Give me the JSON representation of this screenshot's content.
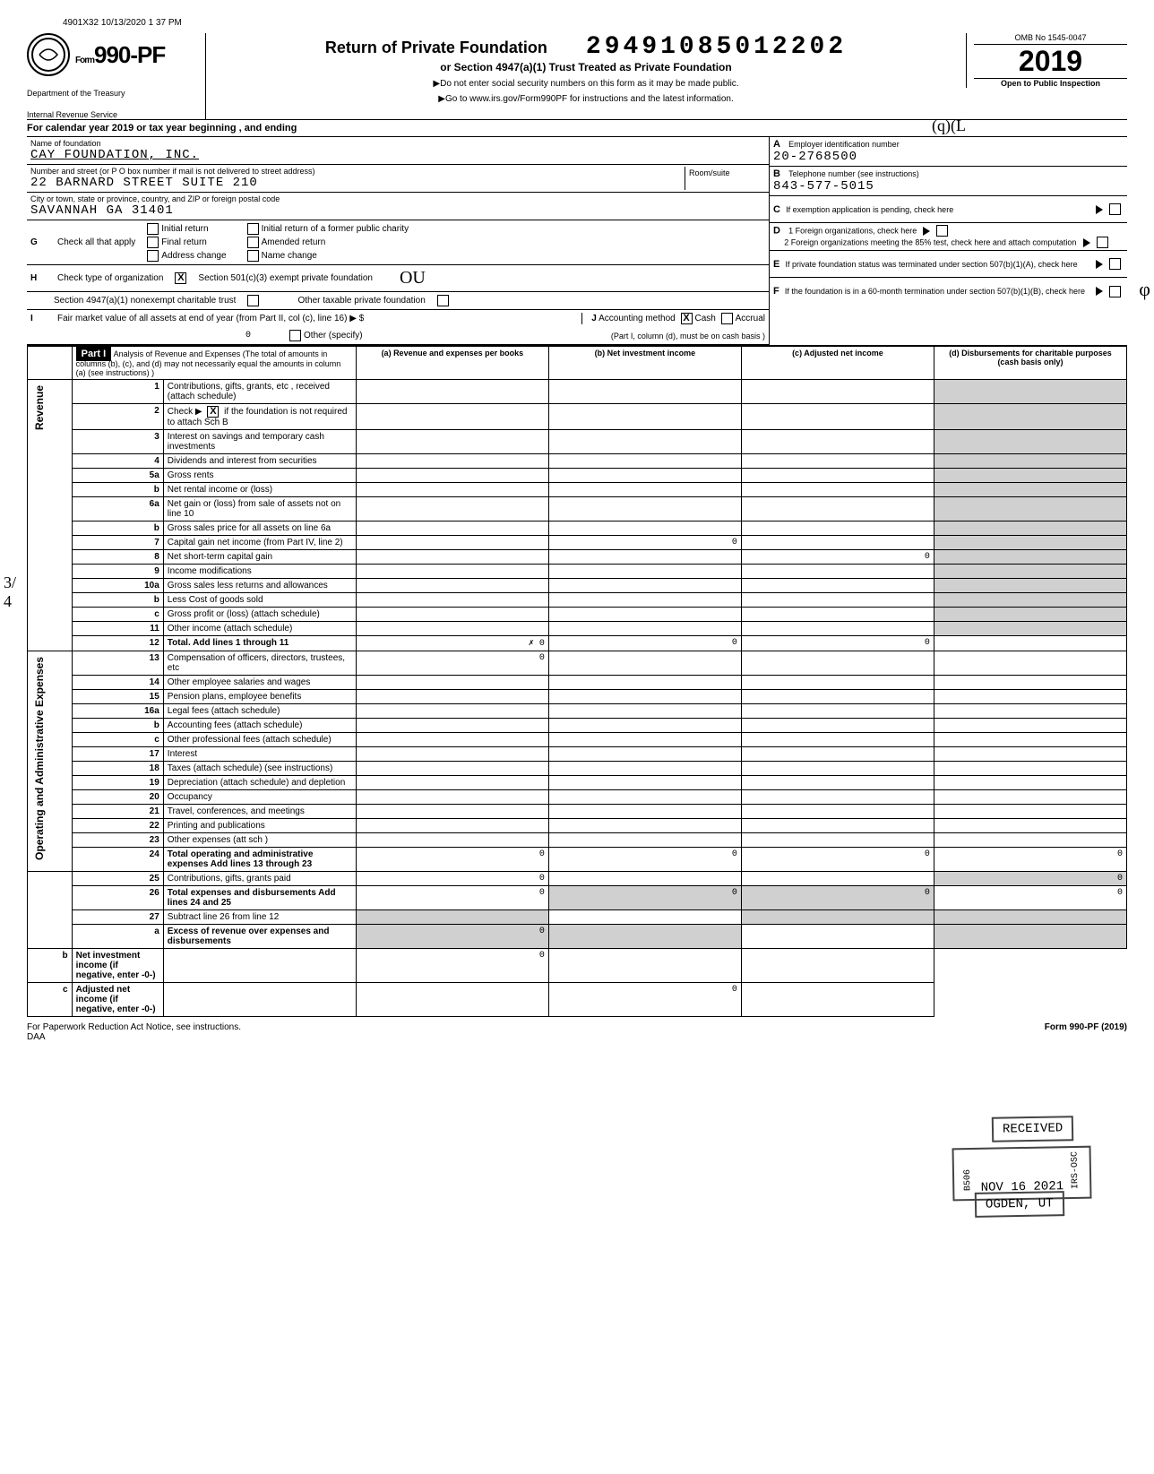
{
  "meta": {
    "print_ts": "4901X32 10/13/2020 1 37 PM",
    "stamped_number": "29491085012202",
    "omb": "OMB No 1545-0047",
    "tax_year": "2019",
    "open_to_public": "Open to Public Inspection",
    "handwritten_qil": "(q)(L"
  },
  "form_header": {
    "form_number": "990-PF",
    "form_prefix": "Form",
    "dept1": "Department of the Treasury",
    "dept2": "Internal Revenue Service",
    "title": "Return of Private Foundation",
    "subtitle": "or Section 4947(a)(1) Trust Treated as Private Foundation",
    "note1": "▶Do not enter social security numbers on this form as it may be made public.",
    "note2": "▶Go to www.irs.gov/Form990PF for instructions and the latest information."
  },
  "calendar_year": "For calendar year 2019 or tax year beginning                               , and ending",
  "foundation": {
    "name_label": "Name of foundation",
    "name": "CAY FOUNDATION, INC.",
    "addr_label": "Number and street (or P O box number if mail is not delivered to street address)",
    "addr": "22 BARNARD STREET SUITE 210",
    "city_label": "City or town, state or province, country, and ZIP or foreign postal code",
    "city": "SAVANNAH                    GA 31401",
    "room_label": "Room/suite"
  },
  "box_a": {
    "lbl": "A",
    "text": "Employer identification number",
    "value": "20-2768500"
  },
  "box_b": {
    "lbl": "B",
    "text": "Telephone number (see instructions)",
    "value": "843-577-5015"
  },
  "box_c": {
    "lbl": "C",
    "text": "If exemption application is pending, check here"
  },
  "box_d": {
    "lbl": "D",
    "line1": "1  Foreign organizations, check here",
    "line2": "2  Foreign organizations meeting the 85% test, check here and attach computation"
  },
  "box_e": {
    "lbl": "E",
    "text": "If private foundation status was terminated under section 507(b)(1)(A), check here"
  },
  "box_f": {
    "lbl": "F",
    "text": "If the foundation is in a 60-month termination under section 507(b)(1)(B), check here"
  },
  "box_g": {
    "lbl": "G",
    "text": "Check all that apply",
    "opts": [
      "Initial return",
      "Final return",
      "Address change",
      "Initial return of a former public charity",
      "Amended return",
      "Name change"
    ]
  },
  "box_h": {
    "lbl": "H",
    "text": "Check type of organization",
    "opt1": "Section 501(c)(3) exempt private foundation",
    "opt2": "Section 4947(a)(1) nonexempt charitable trust",
    "opt3": "Other taxable private foundation",
    "hw": "OU"
  },
  "box_i": {
    "lbl": "I",
    "text": "Fair market value of all assets at end of year (from Part II, col (c), line 16) ▶  $",
    "value": "0",
    "j_lbl": "J",
    "j_text": "Accounting method",
    "j_opts": [
      "Cash",
      "Accrual",
      "Other (specify)"
    ],
    "j_note": "(Part I, column (d), must be on cash basis )"
  },
  "part1": {
    "label": "Part I",
    "title": "Analysis of Revenue and Expenses (The total of amounts in columns (b), (c), and (d) may not necessarily equal the amounts in column (a) (see instructions) )",
    "cols": [
      "(a) Revenue and expenses per books",
      "(b) Net investment income",
      "(c) Adjusted net income",
      "(d) Disbursements for charitable purposes (cash basis only)"
    ]
  },
  "side_labels": {
    "revenue": "Revenue",
    "operating": "Operating and Administrative Expenses"
  },
  "lines": [
    {
      "n": "1",
      "d": "Contributions, gifts, grants, etc , received (attach schedule)"
    },
    {
      "n": "2",
      "d": "Check ▶ [X] if the foundation is not required to attach Sch B",
      "chk": true
    },
    {
      "n": "3",
      "d": "Interest on savings and temporary cash investments"
    },
    {
      "n": "4",
      "d": "Dividends and interest from securities"
    },
    {
      "n": "5a",
      "d": "Gross rents"
    },
    {
      "n": "b",
      "d": "Net rental income or (loss)"
    },
    {
      "n": "6a",
      "d": "Net gain or (loss) from sale of assets not on line 10"
    },
    {
      "n": "b",
      "d": "Gross sales price for all assets on line 6a"
    },
    {
      "n": "7",
      "d": "Capital gain net income (from Part IV, line 2)",
      "b": "0"
    },
    {
      "n": "8",
      "d": "Net short-term capital gain",
      "c": "0"
    },
    {
      "n": "9",
      "d": "Income modifications"
    },
    {
      "n": "10a",
      "d": "Gross sales less returns and allowances"
    },
    {
      "n": "b",
      "d": "Less Cost of goods sold"
    },
    {
      "n": "c",
      "d": "Gross profit or (loss) (attach schedule)"
    },
    {
      "n": "11",
      "d": "Other income (attach schedule)"
    },
    {
      "n": "12",
      "d": "Total. Add lines 1 through 11",
      "a": "✗ 0",
      "b": "0",
      "c": "0",
      "bold": true
    },
    {
      "n": "13",
      "d": "Compensation of officers, directors, trustees, etc",
      "a": "0"
    },
    {
      "n": "14",
      "d": "Other employee salaries and wages"
    },
    {
      "n": "15",
      "d": "Pension plans, employee benefits"
    },
    {
      "n": "16a",
      "d": "Legal fees (attach schedule)"
    },
    {
      "n": "b",
      "d": "Accounting fees (attach schedule)"
    },
    {
      "n": "c",
      "d": "Other professional fees (attach schedule)"
    },
    {
      "n": "17",
      "d": "Interest"
    },
    {
      "n": "18",
      "d": "Taxes (attach schedule) (see instructions)"
    },
    {
      "n": "19",
      "d": "Depreciation (attach schedule) and depletion"
    },
    {
      "n": "20",
      "d": "Occupancy"
    },
    {
      "n": "21",
      "d": "Travel, conferences, and meetings"
    },
    {
      "n": "22",
      "d": "Printing and publications"
    },
    {
      "n": "23",
      "d": "Other expenses (att sch )"
    },
    {
      "n": "24",
      "d": "Total operating and administrative expenses Add lines 13 through 23",
      "a": "0",
      "b": "0",
      "c": "0",
      "dd": "0",
      "bold": true
    },
    {
      "n": "25",
      "d": "Contributions, gifts, grants paid",
      "a": "0",
      "dd": "0"
    },
    {
      "n": "26",
      "d": "Total expenses and disbursements Add lines 24 and 25",
      "a": "0",
      "b": "0",
      "c": "0",
      "dd": "0",
      "bold": true
    },
    {
      "n": "27",
      "d": "Subtract line 26 from line 12"
    },
    {
      "n": "a",
      "d": "Excess of revenue over expenses and disbursements",
      "a": "0",
      "bold": true
    },
    {
      "n": "b",
      "d": "Net investment income (if negative, enter -0-)",
      "b": "0",
      "bold": true
    },
    {
      "n": "c",
      "d": "Adjusted net income (if negative, enter -0-)",
      "c": "0",
      "bold": true
    }
  ],
  "stamps": {
    "received": "RECEIVED",
    "date": "NOV 16 2021",
    "ogden": "OGDEN, UT",
    "side": "IRS-OSC",
    "b506": "B506"
  },
  "footer": {
    "left": "For Paperwork Reduction Act Notice, see instructions.",
    "mid": "DAA",
    "right": "Form 990-PF (2019)"
  }
}
